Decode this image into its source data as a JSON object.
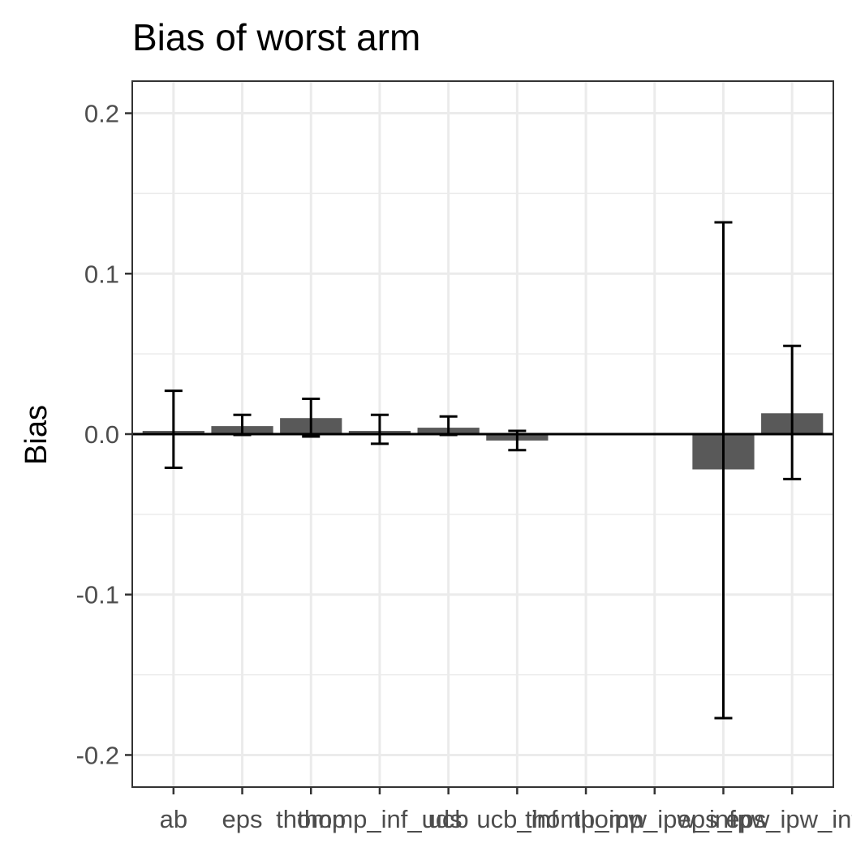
{
  "chart_data": {
    "type": "bar",
    "title": "Bias of worst arm",
    "xlabel": "",
    "ylabel": "Bias",
    "ylim": [
      -0.22,
      0.22
    ],
    "yticks": [
      -0.2,
      -0.1,
      0.0,
      0.1,
      0.2
    ],
    "ytick_labels": [
      "-0.2",
      "-0.1",
      "0.0",
      "0.1",
      "0.2"
    ],
    "grid": true,
    "reference_line": 0,
    "categories": [
      "ab",
      "eps",
      "thomp",
      "thomp_inf_uds",
      "ucb",
      "ucb_inf",
      "thomp_ipw",
      "thomp_ipw_inf",
      "eps_ipw",
      "eps_ipw_inf"
    ],
    "values": [
      0.002,
      0.005,
      0.01,
      0.002,
      0.004,
      -0.004,
      0.0,
      0.0,
      -0.022,
      0.013
    ],
    "error_low": [
      -0.021,
      -0.0005,
      -0.0015,
      -0.006,
      -0.0005,
      -0.01,
      null,
      null,
      -0.177,
      -0.028
    ],
    "error_high": [
      0.027,
      0.012,
      0.022,
      0.012,
      0.011,
      0.002,
      null,
      null,
      0.132,
      0.055
    ],
    "bar_color": "#595959",
    "errorbar_color": "#000000",
    "grid_color": "#ebebeb",
    "panel_border_color": "#333333"
  }
}
